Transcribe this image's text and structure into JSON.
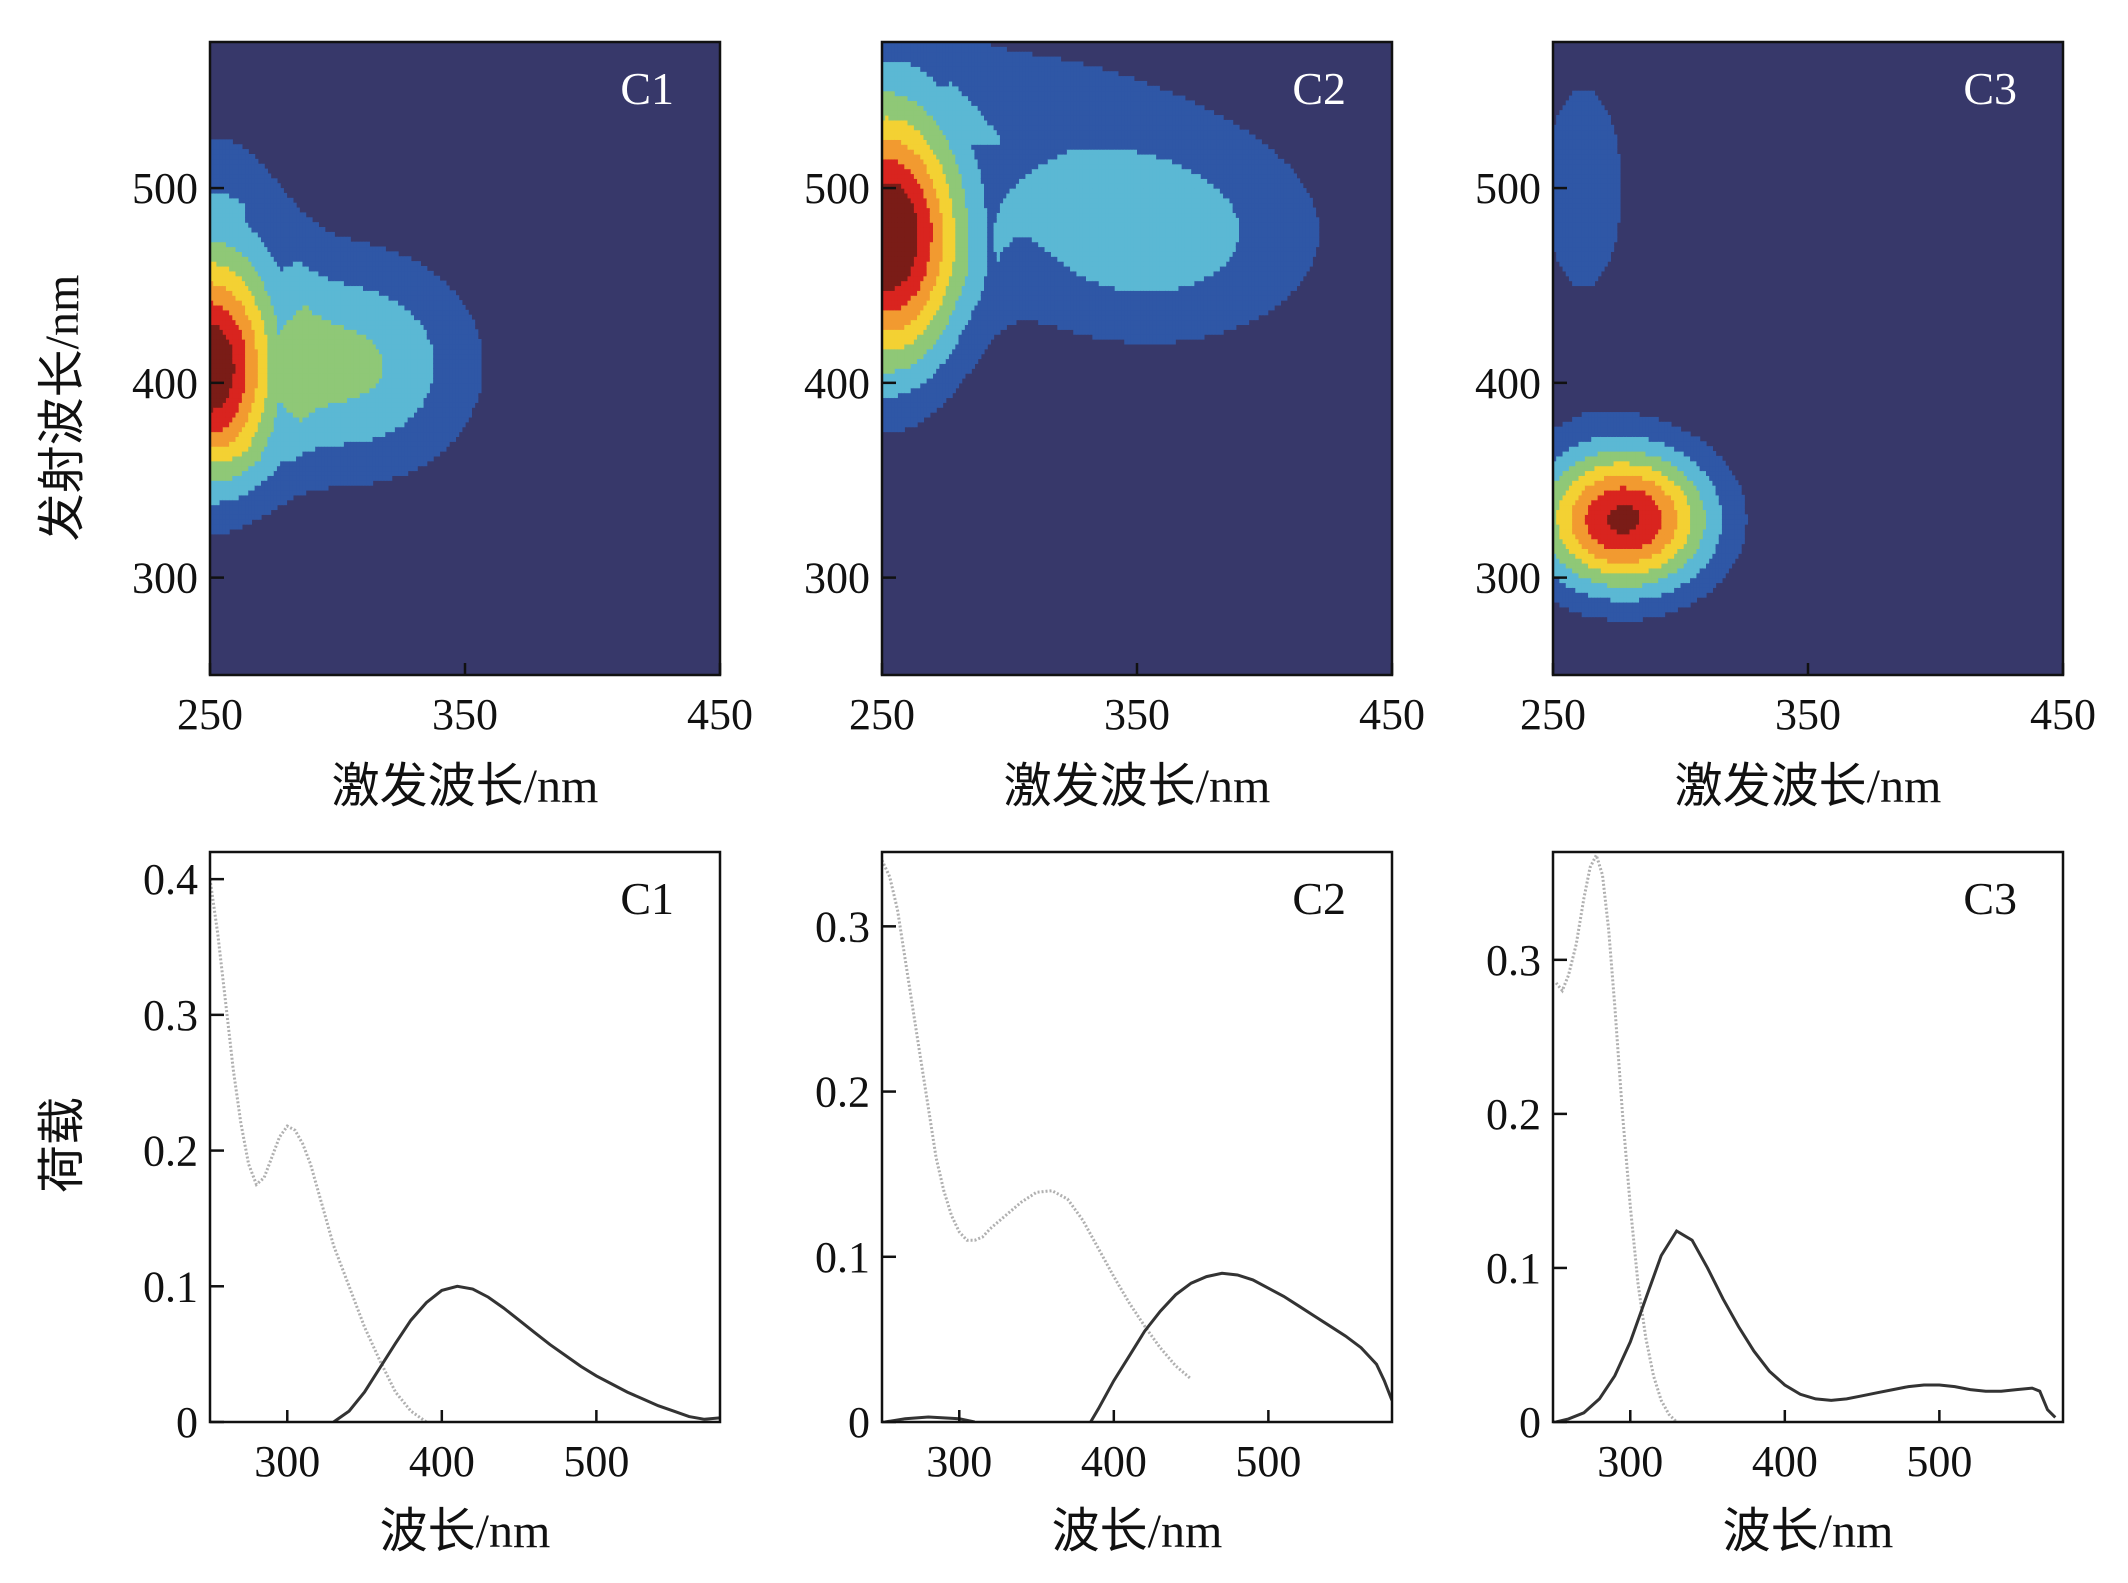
{
  "figure": {
    "ylabel_top": "发射波长/nm",
    "ylabel_bottom": "荷载"
  },
  "colors": {
    "level0": "#37386a",
    "level1": "#2f57a6",
    "level2": "#5bb8d4",
    "level3": "#8fc877",
    "level4": "#f3d133",
    "level5": "#f29a30",
    "level6": "#d9241f",
    "level7": "#7a1c17",
    "contour_line": "#1a1a1a",
    "emission_line": "#333333",
    "excitation_line": "#b0b0b0"
  },
  "chart_data": [
    {
      "type": "contour",
      "panel": "C1",
      "label": "C1",
      "xlabel": "激发波长/nm",
      "ylabel": "发射波长/nm",
      "xlim": [
        250,
        450
      ],
      "ylim": [
        250,
        575
      ],
      "xticks": [
        250,
        350,
        450
      ],
      "yticks": [
        300,
        400,
        500
      ],
      "peaks": [
        {
          "ex": 250,
          "em": 408,
          "level": 7,
          "sx": 18,
          "sy": 42
        },
        {
          "ex": 305,
          "em": 409,
          "level": 3.2,
          "sx": 34,
          "sy": 40
        }
      ],
      "tail": {
        "ex": 250,
        "em": 480,
        "level": 1.3,
        "sx": 25,
        "sy": 50
      }
    },
    {
      "type": "contour",
      "panel": "C2",
      "label": "C2",
      "xlabel": "激发波长/nm",
      "ylabel": "发射波长/nm",
      "xlim": [
        250,
        450
      ],
      "ylim": [
        250,
        575
      ],
      "xticks": [
        250,
        350,
        450
      ],
      "yticks": [
        300,
        400,
        500
      ],
      "peaks": [
        {
          "ex": 252,
          "em": 472,
          "level": 7.6,
          "sx": 20,
          "sy": 48
        },
        {
          "ex": 355,
          "em": 475,
          "level": 2.5,
          "sx": 48,
          "sy": 40
        }
      ],
      "tail": {
        "ex": 290,
        "em": 540,
        "level": 1.2,
        "sx": 60,
        "sy": 40
      }
    },
    {
      "type": "contour",
      "panel": "C3",
      "label": "C3",
      "xlabel": "激发波长/nm",
      "ylabel": "发射波长/nm",
      "xlim": [
        250,
        450
      ],
      "ylim": [
        250,
        575
      ],
      "xticks": [
        250,
        350,
        450
      ],
      "yticks": [
        300,
        400,
        500
      ],
      "peaks": [
        {
          "ex": 278,
          "em": 330,
          "level": 7.2,
          "sx": 24,
          "sy": 26
        }
      ],
      "tail": {
        "ex": 262,
        "em": 500,
        "level": 1.3,
        "sx": 20,
        "sy": 70
      }
    },
    {
      "type": "line",
      "panel": "C1",
      "label": "C1",
      "xlabel": "波长/nm",
      "ylabel": "荷载",
      "xlim": [
        250,
        580
      ],
      "ylim": [
        0,
        0.42
      ],
      "xticks": [
        300,
        400,
        500
      ],
      "yticks": [
        0,
        0.1,
        0.2,
        0.3,
        0.4
      ],
      "ytick_labels": [
        "0",
        "0.1",
        "0.2",
        "0.3",
        "0.4"
      ],
      "series": [
        {
          "style": "excitation",
          "x": [
            250,
            255,
            260,
            265,
            270,
            275,
            280,
            285,
            290,
            295,
            300,
            305,
            310,
            315,
            320,
            325,
            330,
            340,
            350,
            360,
            370,
            380,
            390
          ],
          "y": [
            0.4,
            0.36,
            0.31,
            0.26,
            0.22,
            0.19,
            0.175,
            0.18,
            0.195,
            0.21,
            0.218,
            0.215,
            0.205,
            0.19,
            0.17,
            0.15,
            0.13,
            0.1,
            0.07,
            0.045,
            0.022,
            0.008,
            0.0
          ]
        },
        {
          "style": "emission",
          "x": [
            330,
            340,
            350,
            360,
            370,
            380,
            390,
            400,
            410,
            420,
            430,
            440,
            450,
            460,
            470,
            480,
            490,
            500,
            510,
            520,
            530,
            540,
            550,
            560,
            570,
            580
          ],
          "y": [
            0.0,
            0.008,
            0.022,
            0.04,
            0.058,
            0.075,
            0.088,
            0.097,
            0.1,
            0.098,
            0.092,
            0.084,
            0.075,
            0.066,
            0.057,
            0.049,
            0.041,
            0.034,
            0.028,
            0.022,
            0.017,
            0.012,
            0.008,
            0.004,
            0.002,
            0.003
          ]
        }
      ]
    },
    {
      "type": "line",
      "panel": "C2",
      "label": "C2",
      "xlabel": "波长/nm",
      "ylabel": "荷载",
      "xlim": [
        250,
        580
      ],
      "ylim": [
        0,
        0.345
      ],
      "xticks": [
        300,
        400,
        500
      ],
      "yticks": [
        0,
        0.1,
        0.2,
        0.3
      ],
      "ytick_labels": [
        "0",
        "0.1",
        "0.2",
        "0.3"
      ],
      "series": [
        {
          "style": "excitation",
          "x": [
            250,
            255,
            260,
            265,
            270,
            275,
            280,
            285,
            290,
            295,
            300,
            305,
            310,
            315,
            320,
            330,
            340,
            350,
            360,
            370,
            380,
            390,
            400,
            410,
            420,
            430,
            440,
            450
          ],
          "y": [
            0.34,
            0.33,
            0.31,
            0.28,
            0.25,
            0.22,
            0.19,
            0.16,
            0.14,
            0.125,
            0.115,
            0.11,
            0.11,
            0.112,
            0.117,
            0.125,
            0.133,
            0.139,
            0.14,
            0.135,
            0.122,
            0.105,
            0.088,
            0.072,
            0.058,
            0.045,
            0.034,
            0.026
          ]
        },
        {
          "style": "emission",
          "x": [
            385,
            390,
            400,
            410,
            420,
            430,
            440,
            450,
            460,
            470,
            480,
            490,
            500,
            510,
            520,
            530,
            540,
            550,
            560,
            570,
            575,
            580
          ],
          "y": [
            0.0,
            0.008,
            0.025,
            0.04,
            0.055,
            0.067,
            0.077,
            0.084,
            0.088,
            0.09,
            0.089,
            0.086,
            0.081,
            0.076,
            0.07,
            0.064,
            0.058,
            0.052,
            0.045,
            0.035,
            0.025,
            0.013
          ]
        },
        {
          "style": "emission",
          "x": [
            252,
            265,
            280,
            300,
            310
          ],
          "y": [
            0.0,
            0.002,
            0.003,
            0.002,
            0.0
          ]
        }
      ]
    },
    {
      "type": "line",
      "panel": "C3",
      "label": "C3",
      "xlabel": "波长/nm",
      "ylabel": "荷载",
      "xlim": [
        250,
        580
      ],
      "ylim": [
        0,
        0.37
      ],
      "xticks": [
        300,
        400,
        500
      ],
      "yticks": [
        0,
        0.1,
        0.2,
        0.3
      ],
      "ytick_labels": [
        "0",
        "0.1",
        "0.2",
        "0.3"
      ],
      "series": [
        {
          "style": "excitation",
          "x": [
            252,
            256,
            260,
            265,
            270,
            274,
            278,
            282,
            286,
            290,
            295,
            300,
            305,
            310,
            315,
            320,
            325,
            330
          ],
          "y": [
            0.285,
            0.28,
            0.29,
            0.31,
            0.34,
            0.36,
            0.368,
            0.355,
            0.32,
            0.27,
            0.2,
            0.14,
            0.09,
            0.055,
            0.03,
            0.014,
            0.005,
            0.0
          ]
        },
        {
          "style": "emission",
          "x": [
            252,
            260,
            270,
            280,
            290,
            300,
            310,
            320,
            330,
            340,
            350,
            360,
            370,
            380,
            390,
            400,
            410,
            420,
            430,
            440,
            450,
            460,
            470,
            480,
            490,
            500,
            510,
            520,
            530,
            540,
            550,
            560,
            565,
            570,
            575
          ],
          "y": [
            0.0,
            0.002,
            0.006,
            0.015,
            0.03,
            0.052,
            0.08,
            0.108,
            0.124,
            0.118,
            0.1,
            0.08,
            0.062,
            0.046,
            0.033,
            0.024,
            0.018,
            0.015,
            0.014,
            0.015,
            0.017,
            0.019,
            0.021,
            0.023,
            0.024,
            0.024,
            0.023,
            0.021,
            0.02,
            0.02,
            0.021,
            0.022,
            0.02,
            0.008,
            0.003
          ]
        }
      ]
    }
  ]
}
